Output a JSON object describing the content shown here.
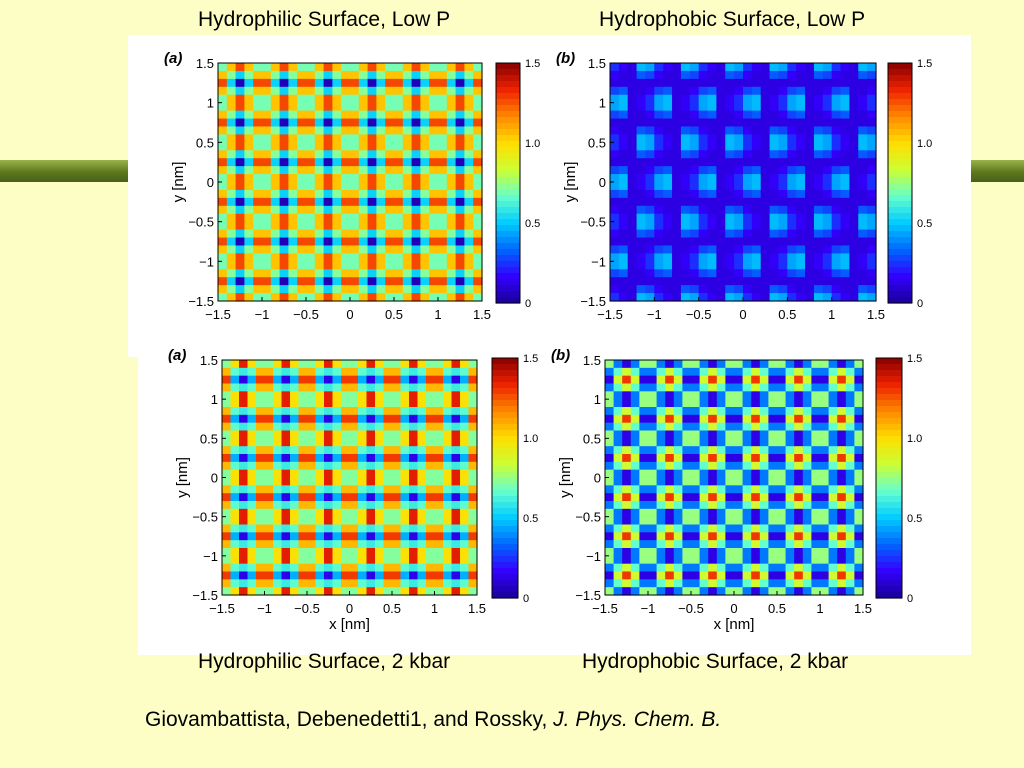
{
  "captions": {
    "top_left": "Hydrophilic Surface, Low P",
    "top_right": "Hydrophobic Surface, Low P",
    "bottom_left": "Hydrophilic Surface, 2 kbar",
    "bottom_right": "Hydrophobic Surface, 2 kbar"
  },
  "citation": {
    "authors": "Giovambattista, Debenedetti1, and Rossky, ",
    "journal": "J. Phys. Chem. B."
  },
  "colors": {
    "background": "#fdfdc6",
    "accent_bar": "#5c7a1c",
    "colormap": [
      "#1a0099",
      "#3300ff",
      "#0066ff",
      "#00ccff",
      "#66ffcc",
      "#ccff33",
      "#ffdd00",
      "#ff8800",
      "#ee2200",
      "#880000"
    ]
  },
  "chart_data": [
    {
      "type": "heatmap",
      "panel_label": "(a)",
      "xlabel": "",
      "ylabel": "y [nm]",
      "xlim": [
        -1.5,
        1.5
      ],
      "ylim": [
        -1.5,
        1.5
      ],
      "xticks": [
        "−1.5",
        "−1",
        "−0.5",
        "0",
        "0.5",
        "1",
        "1.5"
      ],
      "yticks": [
        "1.5",
        "1",
        "0.5",
        "0",
        "−0.5",
        "−1",
        "−1.5"
      ],
      "colorbar_ticks": [
        "1.5",
        "1.0",
        "0.5",
        "0"
      ],
      "colorbar_range": [
        0,
        1.5
      ],
      "pattern": "hydrophilic",
      "pressure": "low"
    },
    {
      "type": "heatmap",
      "panel_label": "(b)",
      "xlabel": "",
      "ylabel": "y [nm]",
      "xlim": [
        -1.5,
        1.5
      ],
      "ylim": [
        -1.5,
        1.5
      ],
      "xticks": [
        "−1.5",
        "−1",
        "−0.5",
        "0",
        "0.5",
        "1",
        "1.5"
      ],
      "yticks": [
        "1.5",
        "1",
        "0.5",
        "0",
        "−0.5",
        "−1",
        "−1.5"
      ],
      "colorbar_ticks": [
        "1.5",
        "1.0",
        "0.5",
        "0"
      ],
      "colorbar_range": [
        0,
        1.5
      ],
      "pattern": "hydrophobic",
      "pressure": "low"
    },
    {
      "type": "heatmap",
      "panel_label": "(a)",
      "xlabel": "x [nm]",
      "ylabel": "y [nm]",
      "xlim": [
        -1.5,
        1.5
      ],
      "ylim": [
        -1.5,
        1.5
      ],
      "xticks": [
        "−1.5",
        "−1",
        "−0.5",
        "0",
        "0.5",
        "1",
        "1.5"
      ],
      "yticks": [
        "1.5",
        "1",
        "0.5",
        "0",
        "−0.5",
        "−1",
        "−1.5"
      ],
      "colorbar_ticks": [
        "1.5",
        "1.0",
        "0.5",
        "0"
      ],
      "colorbar_range": [
        0,
        1.5
      ],
      "pattern": "hydrophilic",
      "pressure": "high"
    },
    {
      "type": "heatmap",
      "panel_label": "(b)",
      "xlabel": "x [nm]",
      "ylabel": "y [nm]",
      "xlim": [
        -1.5,
        1.5
      ],
      "ylim": [
        -1.5,
        1.5
      ],
      "xticks": [
        "−1.5",
        "−1",
        "−0.5",
        "0",
        "0.5",
        "1",
        "1.5"
      ],
      "yticks": [
        "1.5",
        "1",
        "0.5",
        "0",
        "−0.5",
        "−1",
        "−1.5"
      ],
      "colorbar_ticks": [
        "1.5",
        "1.0",
        "0.5",
        "0"
      ],
      "colorbar_range": [
        0,
        1.5
      ],
      "pattern": "hydrophobic",
      "pressure": "high"
    }
  ]
}
